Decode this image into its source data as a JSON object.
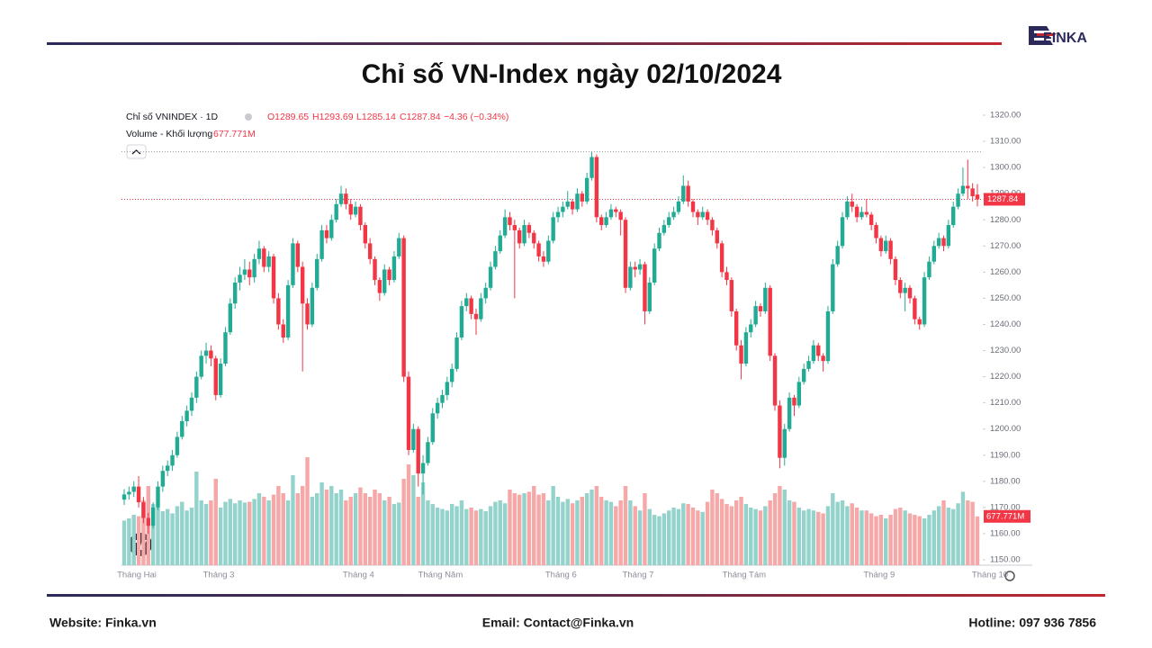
{
  "header": {
    "title": "Chỉ số VN-Index ngày 02/10/2024",
    "logo": "FINKA"
  },
  "footer": {
    "website": "Website: Finka.vn",
    "email": "Email: Contact@Finka.vn",
    "hotline": "Hotline: 097 936 7856"
  },
  "chart_data": {
    "type": "candlestick",
    "legend": {
      "symbol": "Chỉ số VNINDEX · 1D",
      "open": "O1289.65",
      "high": "H1293.69",
      "low": "L1285.14",
      "close": "C1287.84",
      "change": "−4.36 (−0.34%)",
      "volume_name": "Volume - Khối lượng",
      "volume_value": "677.771M"
    },
    "price_tag": "1287.84",
    "volume_tag": "677.771M",
    "up_color": "#22ab94",
    "down_color": "#f23645",
    "volume_up_color": "#94d3cb",
    "volume_down_color": "#f6a8a8",
    "ylim": [
      1150,
      1320
    ],
    "yticks": [
      {
        "value": 1150,
        "label": "1150.00"
      },
      {
        "value": 1160,
        "label": "1160.00"
      },
      {
        "value": 1170,
        "label": "1170.00"
      },
      {
        "value": 1180,
        "label": "1180.00"
      },
      {
        "value": 1190,
        "label": "1190.00"
      },
      {
        "value": 1200,
        "label": "1200.00"
      },
      {
        "value": 1210,
        "label": "1210.00"
      },
      {
        "value": 1220,
        "label": "1220.00"
      },
      {
        "value": 1230,
        "label": "1230.00"
      },
      {
        "value": 1240,
        "label": "1240.00"
      },
      {
        "value": 1250,
        "label": "1250.00"
      },
      {
        "value": 1260,
        "label": "1260.00"
      },
      {
        "value": 1270,
        "label": "1270.00"
      },
      {
        "value": 1280,
        "label": "1280.00"
      },
      {
        "value": 1290,
        "label": "1290.00"
      },
      {
        "value": 1300,
        "label": "1300.00"
      },
      {
        "value": 1310,
        "label": "1310.00"
      },
      {
        "value": 1320,
        "label": "1320.00"
      }
    ],
    "xticks": [
      {
        "value": 0,
        "label": "Tháng Hai"
      },
      {
        "value": 17,
        "label": "Tháng 3"
      },
      {
        "value": 46,
        "label": "Tháng 4"
      },
      {
        "value": 63,
        "label": "Tháng Năm"
      },
      {
        "value": 88,
        "label": "Tháng 6"
      },
      {
        "value": 104,
        "label": "Tháng 7"
      },
      {
        "value": 126,
        "label": "Tháng Tám"
      },
      {
        "value": 154,
        "label": "Tháng 9"
      },
      {
        "value": 177,
        "label": "Tháng 10"
      }
    ],
    "candles": [
      [
        1173,
        1177,
        1171,
        1175
      ],
      [
        1175,
        1178,
        1173,
        1176
      ],
      [
        1176,
        1180,
        1174,
        1178
      ],
      [
        1178,
        1182,
        1170,
        1172
      ],
      [
        1172,
        1174,
        1164,
        1166
      ],
      [
        1166,
        1168,
        1160,
        1163
      ],
      [
        1163,
        1172,
        1162,
        1170
      ],
      [
        1170,
        1180,
        1169,
        1178
      ],
      [
        1178,
        1186,
        1176,
        1184
      ],
      [
        1184,
        1188,
        1182,
        1186
      ],
      [
        1186,
        1192,
        1184,
        1190
      ],
      [
        1190,
        1199,
        1189,
        1197
      ],
      [
        1197,
        1205,
        1196,
        1203
      ],
      [
        1203,
        1209,
        1201,
        1207
      ],
      [
        1207,
        1214,
        1205,
        1212
      ],
      [
        1212,
        1222,
        1210,
        1220
      ],
      [
        1220,
        1230,
        1219,
        1228
      ],
      [
        1228,
        1233,
        1225,
        1230
      ],
      [
        1230,
        1232,
        1224,
        1227
      ],
      [
        1227,
        1228,
        1211,
        1213
      ],
      [
        1213,
        1227,
        1212,
        1225
      ],
      [
        1225,
        1239,
        1224,
        1237
      ],
      [
        1237,
        1250,
        1236,
        1248
      ],
      [
        1248,
        1258,
        1246,
        1256
      ],
      [
        1256,
        1262,
        1253,
        1259
      ],
      [
        1259,
        1265,
        1257,
        1261
      ],
      [
        1261,
        1264,
        1255,
        1258
      ],
      [
        1258,
        1267,
        1256,
        1265
      ],
      [
        1265,
        1272,
        1263,
        1269
      ],
      [
        1269,
        1270,
        1260,
        1262
      ],
      [
        1262,
        1268,
        1260,
        1266
      ],
      [
        1266,
        1267,
        1248,
        1250
      ],
      [
        1250,
        1252,
        1238,
        1240
      ],
      [
        1240,
        1242,
        1233,
        1235
      ],
      [
        1235,
        1257,
        1234,
        1255
      ],
      [
        1255,
        1273,
        1254,
        1271
      ],
      [
        1271,
        1272,
        1260,
        1262
      ],
      [
        1262,
        1264,
        1222,
        1248
      ],
      [
        1248,
        1250,
        1238,
        1240
      ],
      [
        1240,
        1256,
        1239,
        1254
      ],
      [
        1254,
        1267,
        1253,
        1265
      ],
      [
        1265,
        1278,
        1264,
        1276
      ],
      [
        1276,
        1278,
        1271,
        1273
      ],
      [
        1273,
        1282,
        1272,
        1280
      ],
      [
        1280,
        1288,
        1279,
        1286
      ],
      [
        1286,
        1293,
        1285,
        1290
      ],
      [
        1290,
        1292,
        1284,
        1286
      ],
      [
        1286,
        1288,
        1280,
        1282
      ],
      [
        1282,
        1287,
        1281,
        1285
      ],
      [
        1285,
        1286,
        1276,
        1278
      ],
      [
        1278,
        1279,
        1269,
        1271
      ],
      [
        1271,
        1273,
        1263,
        1265
      ],
      [
        1265,
        1266,
        1255,
        1257
      ],
      [
        1257,
        1258,
        1249,
        1252
      ],
      [
        1252,
        1263,
        1251,
        1261
      ],
      [
        1261,
        1262,
        1255,
        1257
      ],
      [
        1257,
        1268,
        1256,
        1266
      ],
      [
        1266,
        1275,
        1265,
        1273
      ],
      [
        1273,
        1274,
        1218,
        1220
      ],
      [
        1220,
        1222,
        1190,
        1192
      ],
      [
        1192,
        1202,
        1191,
        1200
      ],
      [
        1200,
        1201,
        1178,
        1183
      ],
      [
        1183,
        1190,
        1175,
        1187
      ],
      [
        1187,
        1197,
        1186,
        1195
      ],
      [
        1195,
        1208,
        1194,
        1206
      ],
      [
        1206,
        1212,
        1204,
        1210
      ],
      [
        1210,
        1215,
        1208,
        1213
      ],
      [
        1213,
        1220,
        1211,
        1218
      ],
      [
        1218,
        1225,
        1216,
        1223
      ],
      [
        1223,
        1237,
        1222,
        1235
      ],
      [
        1235,
        1249,
        1234,
        1247
      ],
      [
        1247,
        1252,
        1245,
        1250
      ],
      [
        1250,
        1251,
        1242,
        1244
      ],
      [
        1244,
        1246,
        1236,
        1242
      ],
      [
        1242,
        1252,
        1241,
        1250
      ],
      [
        1250,
        1256,
        1248,
        1254
      ],
      [
        1254,
        1264,
        1253,
        1262
      ],
      [
        1262,
        1270,
        1261,
        1268
      ],
      [
        1268,
        1276,
        1267,
        1274
      ],
      [
        1274,
        1284,
        1273,
        1281
      ],
      [
        1281,
        1283,
        1276,
        1278
      ],
      [
        1278,
        1280,
        1250,
        1276
      ],
      [
        1276,
        1277,
        1269,
        1271
      ],
      [
        1271,
        1280,
        1270,
        1278
      ],
      [
        1278,
        1279,
        1273,
        1275
      ],
      [
        1275,
        1276,
        1269,
        1271
      ],
      [
        1271,
        1272,
        1264,
        1266
      ],
      [
        1266,
        1268,
        1262,
        1264
      ],
      [
        1264,
        1274,
        1263,
        1272
      ],
      [
        1272,
        1283,
        1271,
        1281
      ],
      [
        1281,
        1285,
        1279,
        1283
      ],
      [
        1283,
        1287,
        1281,
        1285
      ],
      [
        1285,
        1291,
        1284,
        1287
      ],
      [
        1287,
        1288,
        1282,
        1284
      ],
      [
        1284,
        1292,
        1283,
        1290
      ],
      [
        1290,
        1291,
        1285,
        1287
      ],
      [
        1287,
        1298,
        1286,
        1296
      ],
      [
        1296,
        1306,
        1295,
        1304
      ],
      [
        1304,
        1305,
        1279,
        1281
      ],
      [
        1281,
        1282,
        1276,
        1278
      ],
      [
        1278,
        1283,
        1277,
        1281
      ],
      [
        1281,
        1286,
        1280,
        1284
      ],
      [
        1284,
        1285,
        1281,
        1283
      ],
      [
        1283,
        1284,
        1274,
        1280
      ],
      [
        1280,
        1281,
        1252,
        1254
      ],
      [
        1254,
        1264,
        1253,
        1262
      ],
      [
        1262,
        1264,
        1258,
        1261
      ],
      [
        1261,
        1265,
        1259,
        1263
      ],
      [
        1263,
        1264,
        1240,
        1245
      ],
      [
        1245,
        1258,
        1244,
        1256
      ],
      [
        1256,
        1271,
        1255,
        1269
      ],
      [
        1269,
        1277,
        1268,
        1275
      ],
      [
        1275,
        1280,
        1274,
        1278
      ],
      [
        1278,
        1283,
        1277,
        1281
      ],
      [
        1281,
        1285,
        1280,
        1283
      ],
      [
        1283,
        1289,
        1282,
        1287
      ],
      [
        1287,
        1297,
        1286,
        1293
      ],
      [
        1293,
        1295,
        1285,
        1287
      ],
      [
        1287,
        1288,
        1281,
        1283
      ],
      [
        1283,
        1284,
        1278,
        1281
      ],
      [
        1281,
        1285,
        1280,
        1283
      ],
      [
        1283,
        1284,
        1278,
        1280
      ],
      [
        1280,
        1281,
        1274,
        1276
      ],
      [
        1276,
        1277,
        1269,
        1271
      ],
      [
        1271,
        1272,
        1258,
        1260
      ],
      [
        1260,
        1262,
        1255,
        1257
      ],
      [
        1257,
        1258,
        1243,
        1245
      ],
      [
        1245,
        1246,
        1230,
        1232
      ],
      [
        1232,
        1234,
        1219,
        1225
      ],
      [
        1225,
        1239,
        1224,
        1237
      ],
      [
        1237,
        1242,
        1235,
        1240
      ],
      [
        1240,
        1249,
        1239,
        1247
      ],
      [
        1247,
        1248,
        1243,
        1245
      ],
      [
        1245,
        1256,
        1244,
        1254
      ],
      [
        1254,
        1255,
        1226,
        1228
      ],
      [
        1228,
        1229,
        1207,
        1209
      ],
      [
        1209,
        1211,
        1185,
        1189
      ],
      [
        1189,
        1202,
        1186,
        1200
      ],
      [
        1200,
        1214,
        1199,
        1212
      ],
      [
        1212,
        1213,
        1205,
        1209
      ],
      [
        1209,
        1220,
        1208,
        1218
      ],
      [
        1218,
        1225,
        1217,
        1223
      ],
      [
        1223,
        1228,
        1222,
        1226
      ],
      [
        1226,
        1234,
        1225,
        1232
      ],
      [
        1232,
        1233,
        1226,
        1228
      ],
      [
        1228,
        1229,
        1222,
        1226
      ],
      [
        1226,
        1247,
        1225,
        1245
      ],
      [
        1245,
        1265,
        1244,
        1263
      ],
      [
        1263,
        1272,
        1262,
        1270
      ],
      [
        1270,
        1283,
        1269,
        1281
      ],
      [
        1281,
        1289,
        1280,
        1287
      ],
      [
        1287,
        1290,
        1283,
        1285
      ],
      [
        1285,
        1286,
        1279,
        1281
      ],
      [
        1281,
        1285,
        1280,
        1283
      ],
      [
        1283,
        1288,
        1281,
        1282
      ],
      [
        1282,
        1283,
        1276,
        1278
      ],
      [
        1278,
        1279,
        1271,
        1273
      ],
      [
        1273,
        1274,
        1266,
        1268
      ],
      [
        1268,
        1274,
        1267,
        1272
      ],
      [
        1272,
        1273,
        1263,
        1265
      ],
      [
        1265,
        1266,
        1255,
        1257
      ],
      [
        1257,
        1258,
        1250,
        1252
      ],
      [
        1252,
        1256,
        1245,
        1254
      ],
      [
        1254,
        1255,
        1248,
        1250
      ],
      [
        1250,
        1251,
        1240,
        1242
      ],
      [
        1242,
        1243,
        1238,
        1240
      ],
      [
        1240,
        1260,
        1239,
        1258
      ],
      [
        1258,
        1266,
        1257,
        1264
      ],
      [
        1264,
        1272,
        1263,
        1270
      ],
      [
        1270,
        1275,
        1269,
        1273
      ],
      [
        1273,
        1274,
        1268,
        1270
      ],
      [
        1270,
        1280,
        1269,
        1278
      ],
      [
        1278,
        1287,
        1277,
        1285
      ],
      [
        1285,
        1292,
        1284,
        1290
      ],
      [
        1290,
        1300,
        1289,
        1293
      ],
      [
        1293,
        1303,
        1288,
        1292
      ],
      [
        1292,
        1294,
        1287,
        1289
      ],
      [
        1289.65,
        1293.69,
        1285.14,
        1287.84
      ]
    ],
    "volume": [
      620,
      650,
      700,
      680,
      900,
      1100,
      850,
      800,
      750,
      780,
      720,
      820,
      880,
      760,
      800,
      1300,
      900,
      850,
      900,
      1200,
      800,
      880,
      920,
      860,
      900,
      870,
      880,
      920,
      1000,
      950,
      900,
      980,
      1100,
      1000,
      900,
      1250,
      1000,
      1100,
      1500,
      950,
      1000,
      1150,
      1050,
      1100,
      1000,
      1050,
      900,
      950,
      1000,
      1080,
      1000,
      950,
      1050,
      1000,
      900,
      950,
      850,
      870,
      1200,
      1400,
      1250,
      950,
      1150,
      900,
      850,
      800,
      780,
      760,
      850,
      820,
      900,
      780,
      800,
      760,
      780,
      750,
      820,
      880,
      900,
      860,
      1050,
      1000,
      980,
      1000,
      1020,
      1100,
      980,
      1000,
      900,
      1100,
      950,
      880,
      920,
      860,
      900,
      950,
      1000,
      1050,
      1100,
      950,
      900,
      880,
      820,
      900,
      1100,
      900,
      820,
      760,
      1000,
      780,
      700,
      680,
      720,
      760,
      800,
      780,
      860,
      850,
      800,
      760,
      740,
      880,
      1050,
      1000,
      920,
      850,
      820,
      900,
      950,
      850,
      800,
      780,
      760,
      820,
      900,
      1000,
      1100,
      1050,
      900,
      880,
      800,
      760,
      780,
      760,
      740,
      720,
      820,
      1000,
      880,
      900,
      820,
      860,
      800,
      760,
      760,
      720,
      680,
      700,
      650,
      700,
      780,
      800,
      760,
      720,
      700,
      680,
      650,
      700,
      760,
      820,
      900,
      800,
      780,
      860,
      1020,
      900,
      880,
      677.771
    ]
  }
}
